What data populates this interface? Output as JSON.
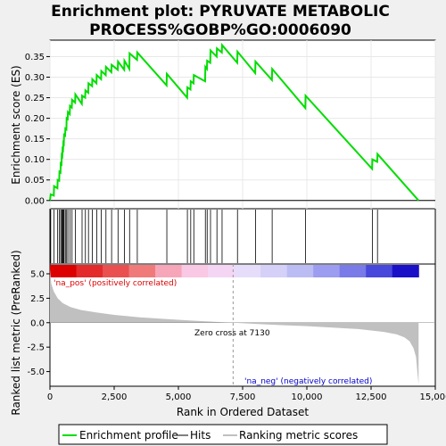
{
  "chart_data": {
    "type": "line",
    "title_line1": "Enrichment plot: PYRUVATE METABOLIC",
    "title_line2": "PROCESS%GOBP%GO:0006090",
    "xlabel": "Rank in Ordered Dataset",
    "ylabel_top": "Enrichment score (ES)",
    "ylabel_bottom": "Ranked list metric (PreRanked)",
    "xlim": [
      0,
      15000
    ],
    "x_ticks": [
      0,
      2500,
      5000,
      7500,
      10000,
      12500,
      15000
    ],
    "x_tick_labels": [
      "0",
      "2,500",
      "5,000",
      "7,500",
      "10,000",
      "12,500",
      "15,000"
    ],
    "es_ylim": [
      -0.02,
      0.39
    ],
    "es_y_ticks": [
      0.0,
      0.05,
      0.1,
      0.15,
      0.2,
      0.25,
      0.3,
      0.35
    ],
    "es_y_tick_labels": [
      "0.00",
      "0.05",
      "0.10",
      "0.15",
      "0.20",
      "0.25",
      "0.30",
      "0.35"
    ],
    "metric_ylim": [
      -6.5,
      6.0
    ],
    "metric_y_ticks": [
      5.0,
      2.5,
      0.0,
      -2.5,
      -5.0
    ],
    "metric_y_tick_labels": [
      "5.0",
      "2.5",
      "0.0",
      "-2.5",
      "-5.0"
    ],
    "max_rank": 14350,
    "zero_cross_rank": 7130,
    "zero_cross_label": "Zero cross at 7130",
    "pos_label": "'na_pos' (positively correlated)",
    "neg_label": "'na_neg' (negatively correlated)",
    "hits": [
      30,
      160,
      300,
      370,
      420,
      460,
      490,
      520,
      550,
      600,
      650,
      700,
      780,
      860,
      990,
      1250,
      1380,
      1500,
      1650,
      1820,
      2000,
      2180,
      2400,
      2650,
      2900,
      3100,
      3400,
      4550,
      5350,
      5480,
      5600,
      6050,
      6120,
      6250,
      6500,
      6700,
      7300,
      8000,
      8650,
      9950,
      12550,
      12750
    ],
    "es_curve_x": [
      0,
      30,
      150,
      160,
      290,
      300,
      360,
      370,
      410,
      420,
      450,
      460,
      480,
      490,
      510,
      520,
      540,
      550,
      590,
      600,
      640,
      650,
      690,
      700,
      770,
      780,
      850,
      860,
      980,
      990,
      1240,
      1250,
      1370,
      1380,
      1490,
      1500,
      1640,
      1650,
      1810,
      1820,
      1990,
      2000,
      2170,
      2180,
      2390,
      2400,
      2640,
      2650,
      2890,
      2900,
      3090,
      3100,
      3390,
      3400,
      4540,
      4550,
      5340,
      5350,
      5470,
      5480,
      5590,
      5600,
      6040,
      6050,
      6110,
      6120,
      6240,
      6250,
      6490,
      6500,
      6690,
      6700,
      7290,
      7300,
      7990,
      8000,
      8640,
      8650,
      9940,
      9950,
      12540,
      12550,
      12740,
      12750,
      14350
    ],
    "es_curve_y": [
      0.0,
      0.015,
      0.012,
      0.035,
      0.03,
      0.05,
      0.048,
      0.07,
      0.068,
      0.09,
      0.088,
      0.11,
      0.108,
      0.125,
      0.123,
      0.14,
      0.138,
      0.16,
      0.158,
      0.175,
      0.173,
      0.2,
      0.198,
      0.215,
      0.21,
      0.23,
      0.226,
      0.245,
      0.238,
      0.258,
      0.235,
      0.255,
      0.25,
      0.268,
      0.262,
      0.285,
      0.278,
      0.295,
      0.285,
      0.305,
      0.295,
      0.315,
      0.305,
      0.325,
      0.312,
      0.33,
      0.318,
      0.338,
      0.318,
      0.34,
      0.32,
      0.358,
      0.342,
      0.36,
      0.28,
      0.308,
      0.25,
      0.275,
      0.27,
      0.29,
      0.285,
      0.305,
      0.29,
      0.325,
      0.32,
      0.34,
      0.335,
      0.365,
      0.35,
      0.37,
      0.36,
      0.378,
      0.335,
      0.362,
      0.31,
      0.338,
      0.293,
      0.32,
      0.225,
      0.255,
      0.077,
      0.1,
      0.094,
      0.113,
      0.0
    ],
    "metric_curve_x": [
      0,
      50,
      150,
      300,
      500,
      800,
      1200,
      1800,
      2500,
      3500,
      4500,
      5500,
      6500,
      7130,
      8000,
      9000,
      10000,
      11000,
      12000,
      12500,
      13000,
      13500,
      13800,
      14000,
      14150,
      14250,
      14300,
      14350
    ],
    "metric_curve_y": [
      5.5,
      4.0,
      3.2,
      2.5,
      2.0,
      1.6,
      1.3,
      1.05,
      0.8,
      0.55,
      0.38,
      0.22,
      0.08,
      0.0,
      -0.12,
      -0.25,
      -0.35,
      -0.5,
      -0.65,
      -0.8,
      -0.95,
      -1.2,
      -1.5,
      -1.9,
      -2.6,
      -3.5,
      -5.0,
      -6.3
    ],
    "colors": {
      "es_line": "#00dd00",
      "hit_line": "#000000",
      "metric_fill": "#c0c0c0",
      "zero_cross": "#999999",
      "pos_text": "#dd0000",
      "neg_text": "#0000cc",
      "background": "#f0f0f0",
      "plot_bg": "#ffffff"
    },
    "rank_bar_colors": [
      "#dd0000",
      "#e42a2a",
      "#ea5050",
      "#f07a7a",
      "#f6a6b8",
      "#f8c8e4",
      "#f4d6f4",
      "#e6ddfa",
      "#d4d0f8",
      "#bcbcf4",
      "#9c9cf0",
      "#7a7ae8",
      "#4848dc",
      "#1a10c8"
    ],
    "legend": [
      {
        "label": "Enrichment profile",
        "kind": "es"
      },
      {
        "label": "Hits",
        "kind": "hit"
      },
      {
        "label": "Ranking metric scores",
        "kind": "metric"
      }
    ]
  }
}
